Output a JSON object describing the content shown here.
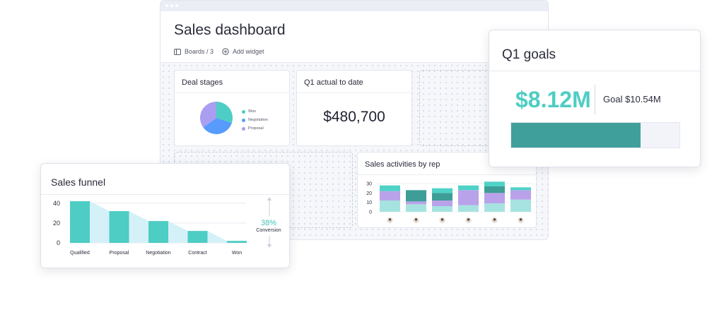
{
  "dashboard": {
    "title": "Sales dashboard",
    "breadcrumb": "Boards / 3",
    "add_widget_label": "Add widget"
  },
  "deal_stages": {
    "title": "Deal stages",
    "legend": [
      {
        "label": "Won",
        "color": "#4ecdc4"
      },
      {
        "label": "Negotiation",
        "color": "#579bfc"
      },
      {
        "label": "Proposal",
        "color": "#a99ef0"
      }
    ]
  },
  "q1_actual": {
    "title": "Q1 actual to date",
    "value": "$480,700"
  },
  "q1_goals": {
    "title": "Q1 goals",
    "amount": "$8.12M",
    "goal_text": "Goal $10.54M",
    "progress": 0.77,
    "bar_color": "#3fa09b"
  },
  "sales_funnel": {
    "title": "Sales funnel",
    "conversion_pct": "38%",
    "conversion_label": "Conversion",
    "colors": {
      "bar": "#4ecdc4",
      "area": "#d4f1f7",
      "accent": "#3fbfb4"
    }
  },
  "sales_activities": {
    "title": "Sales activities by rep",
    "colors": {
      "light": "#a6e3e0",
      "purple": "#b9a2ea",
      "dark": "#3e9d97",
      "mint": "#4fd2c7"
    }
  },
  "chart_data": [
    {
      "type": "pie",
      "title": "Deal stages",
      "categories": [
        "Won",
        "Negotiation",
        "Proposal"
      ],
      "values": [
        30,
        35,
        35
      ]
    },
    {
      "type": "area",
      "title": "Sales funnel",
      "categories": [
        "Qualified",
        "Proposal",
        "Negotiation",
        "Contract",
        "Won"
      ],
      "values": [
        42,
        32,
        22,
        12,
        2
      ],
      "y_ticks": [
        "40",
        "20",
        "0"
      ],
      "ylim": [
        0,
        42
      ]
    },
    {
      "type": "bar",
      "title": "Sales activities by rep",
      "y_ticks": [
        "30",
        "20",
        "10",
        "0"
      ],
      "ylim": [
        0,
        30
      ],
      "stacked": true,
      "series": [
        {
          "values": [
            12,
            8,
            6,
            7,
            9,
            13
          ]
        },
        {
          "values": [
            10,
            3,
            6,
            16,
            11,
            10
          ]
        },
        {
          "values": [
            0,
            12,
            8,
            0,
            7,
            0
          ]
        },
        {
          "values": [
            6,
            0,
            5,
            5,
            5,
            3
          ]
        }
      ]
    }
  ]
}
